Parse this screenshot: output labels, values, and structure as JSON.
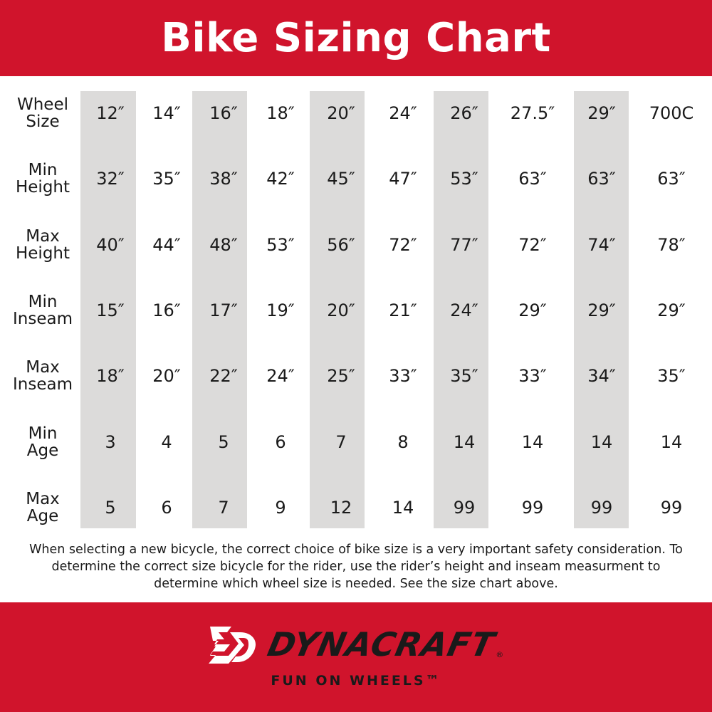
{
  "title": "Bike Sizing Chart",
  "table": {
    "row_labels": [
      [
        "Wheel",
        "Size"
      ],
      [
        "Min",
        "Height"
      ],
      [
        "Max",
        "Height"
      ],
      [
        "Min",
        "Inseam"
      ],
      [
        "Max",
        "Inseam"
      ],
      [
        "Min",
        "Age"
      ],
      [
        "Max",
        "Age"
      ]
    ],
    "rows": [
      [
        "12″",
        "14″",
        "16″",
        "18″",
        "20″",
        "24″",
        "26″",
        "27.5″",
        "29″",
        "700C"
      ],
      [
        "32″",
        "35″",
        "38″",
        "42″",
        "45″",
        "47″",
        "53″",
        "63″",
        "63″",
        "63″"
      ],
      [
        "40″",
        "44″",
        "48″",
        "53″",
        "56″",
        "72″",
        "77″",
        "72″",
        "74″",
        "78″"
      ],
      [
        "15″",
        "16″",
        "17″",
        "19″",
        "20″",
        "21″",
        "24″",
        "29″",
        "29″",
        "29″"
      ],
      [
        "18″",
        "20″",
        "22″",
        "24″",
        "25″",
        "33″",
        "35″",
        "33″",
        "34″",
        "35″"
      ],
      [
        "3",
        "4",
        "5",
        "6",
        "7",
        "8",
        "14",
        "14",
        "14",
        "14"
      ],
      [
        "5",
        "6",
        "7",
        "9",
        "12",
        "14",
        "99",
        "99",
        "99",
        "99"
      ]
    ],
    "shaded_columns": [
      0,
      2,
      4,
      6,
      8
    ]
  },
  "note": "When selecting a new bicycle, the correct choice of bike size is a very important safety consideration. To determine the correct size bicycle for the rider, use the rider’s height and inseam measurment to determine which wheel size is needed. See the size chart above.",
  "footer": {
    "brand": "DYNACRAFT",
    "registered": "®",
    "tagline": "FUN ON WHEELS™"
  },
  "colors": {
    "brand_red": "#d0142c",
    "band_gray": "#dcdbda"
  }
}
